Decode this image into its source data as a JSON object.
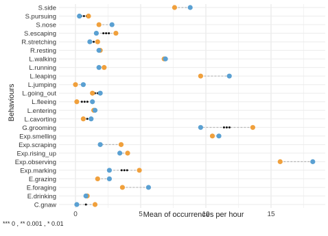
{
  "chart_data": {
    "type": "dumbbell",
    "xlabel": "Mean of occurrences per hour",
    "ylabel": "Behaviours",
    "xlim": [
      -0.5,
      18.5
    ],
    "xticks": [
      0,
      5,
      10,
      15
    ],
    "grid": true,
    "colors": {
      "orange": "#f0a03c",
      "blue": "#5aa0d2",
      "connector": "#b4b4b4",
      "significance_marker": "#111111"
    },
    "rows": [
      {
        "label": "S.side",
        "orange": 7.6,
        "blue": 8.8,
        "sig": ""
      },
      {
        "label": "S.pursuing",
        "orange": 1.0,
        "blue": 0.3,
        "sig": "***"
      },
      {
        "label": "S.nose",
        "orange": 1.8,
        "blue": 2.8,
        "sig": ""
      },
      {
        "label": "S.escaping",
        "orange": 3.1,
        "blue": 1.6,
        "sig": "***"
      },
      {
        "label": "R.stretching",
        "orange": 1.7,
        "blue": 1.1,
        "sig": "*"
      },
      {
        "label": "R.resting",
        "orange": 1.9,
        "blue": 1.8,
        "sig": ""
      },
      {
        "label": "L.walking",
        "orange": 6.8,
        "blue": 6.9,
        "sig": ""
      },
      {
        "label": "L.running",
        "orange": 2.2,
        "blue": 1.8,
        "sig": ""
      },
      {
        "label": "L.leaping",
        "orange": 9.6,
        "blue": 11.8,
        "sig": ""
      },
      {
        "label": "L.jumping",
        "orange": 0.0,
        "blue": 0.6,
        "sig": ""
      },
      {
        "label": "L.going_out",
        "orange": 1.3,
        "blue": 1.9,
        "sig": "**"
      },
      {
        "label": "L.fleeing",
        "orange": 0.1,
        "blue": 1.3,
        "sig": "***"
      },
      {
        "label": "L.entering",
        "orange": 1.4,
        "blue": 1.5,
        "sig": ""
      },
      {
        "label": "L.cavorting",
        "orange": 0.6,
        "blue": 1.2,
        "sig": "*"
      },
      {
        "label": "G.grooming",
        "orange": 13.6,
        "blue": 9.6,
        "sig": "***"
      },
      {
        "label": "Exp.smelling",
        "orange": 10.5,
        "blue": 11.0,
        "sig": ""
      },
      {
        "label": "Exp.scraping",
        "orange": 3.5,
        "blue": 1.9,
        "sig": ""
      },
      {
        "label": "Exp.rising_up",
        "orange": 4.0,
        "blue": 3.4,
        "sig": ""
      },
      {
        "label": "Exp.observing",
        "orange": 15.7,
        "blue": 18.2,
        "sig": ""
      },
      {
        "label": "Exp.marking",
        "orange": 4.9,
        "blue": 2.6,
        "sig": "***"
      },
      {
        "label": "E.grazing",
        "orange": 1.7,
        "blue": 2.6,
        "sig": ""
      },
      {
        "label": "E.foraging",
        "orange": 3.6,
        "blue": 5.6,
        "sig": ""
      },
      {
        "label": "E.drinking",
        "orange": 0.9,
        "blue": 0.8,
        "sig": ""
      },
      {
        "label": "C.gnaw",
        "orange": 1.5,
        "blue": 0.1,
        "sig": "*"
      }
    ]
  },
  "footnote": "*** 0 , ** 0.001 , * 0.01"
}
